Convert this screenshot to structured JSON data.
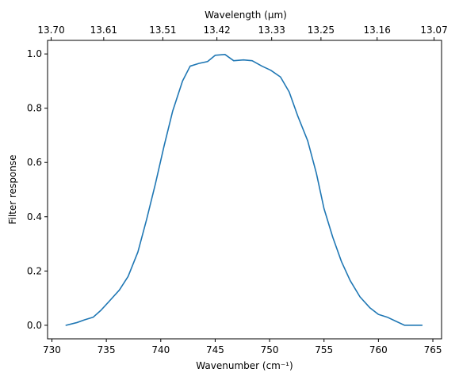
{
  "chart_data": {
    "type": "line",
    "title": "",
    "xlabel": "Wavenumber (cm⁻¹)",
    "ylabel": "Filter response",
    "top_xlabel": "Wavelength (μm)",
    "xlim": [
      729.6,
      765.8
    ],
    "ylim": [
      -0.05,
      1.05
    ],
    "grid": false,
    "color": "#1f77b4",
    "x_ticks": [
      730,
      735,
      740,
      745,
      750,
      755,
      760,
      765
    ],
    "y_ticks": [
      0.0,
      0.2,
      0.4,
      0.6,
      0.8,
      1.0
    ],
    "x_tick_labels": [
      "730",
      "735",
      "740",
      "745",
      "750",
      "755",
      "760",
      "765"
    ],
    "y_tick_labels": [
      "0.0",
      "0.2",
      "0.4",
      "0.6",
      "0.8",
      "1.0"
    ],
    "top_ticks": [
      {
        "label": "13.70",
        "wavenumber": 729.93
      },
      {
        "label": "13.61",
        "wavenumber": 734.76
      },
      {
        "label": "13.51",
        "wavenumber": 740.19
      },
      {
        "label": "13.42",
        "wavenumber": 745.16
      },
      {
        "label": "13.33",
        "wavenumber": 750.19
      },
      {
        "label": "13.25",
        "wavenumber": 754.72
      },
      {
        "label": "13.16",
        "wavenumber": 759.88
      },
      {
        "label": "13.07",
        "wavenumber": 765.11
      }
    ],
    "series": [
      {
        "x": [
          731.3,
          732.3,
          733.0,
          733.8,
          734.5,
          735.3,
          736.2,
          737.0,
          737.9,
          738.7,
          739.5,
          740.3,
          741.1,
          742.0,
          742.7,
          743.5,
          744.3,
          745.0,
          745.9,
          746.7,
          747.6,
          748.4,
          749.3,
          750.1,
          751.0,
          751.8,
          752.6,
          753.5,
          754.3,
          755.0,
          755.8,
          756.6,
          757.4,
          758.3,
          759.2,
          760.0,
          760.8,
          761.6,
          762.4,
          763.2,
          764.0
        ],
        "y": [
          0.0,
          0.01,
          0.02,
          0.03,
          0.055,
          0.09,
          0.13,
          0.18,
          0.27,
          0.39,
          0.52,
          0.66,
          0.79,
          0.9,
          0.955,
          0.965,
          0.972,
          0.995,
          0.998,
          0.975,
          0.978,
          0.975,
          0.955,
          0.94,
          0.915,
          0.86,
          0.77,
          0.68,
          0.56,
          0.43,
          0.325,
          0.235,
          0.165,
          0.105,
          0.065,
          0.04,
          0.03,
          0.015,
          0.0,
          0.0,
          0.0
        ]
      }
    ]
  }
}
